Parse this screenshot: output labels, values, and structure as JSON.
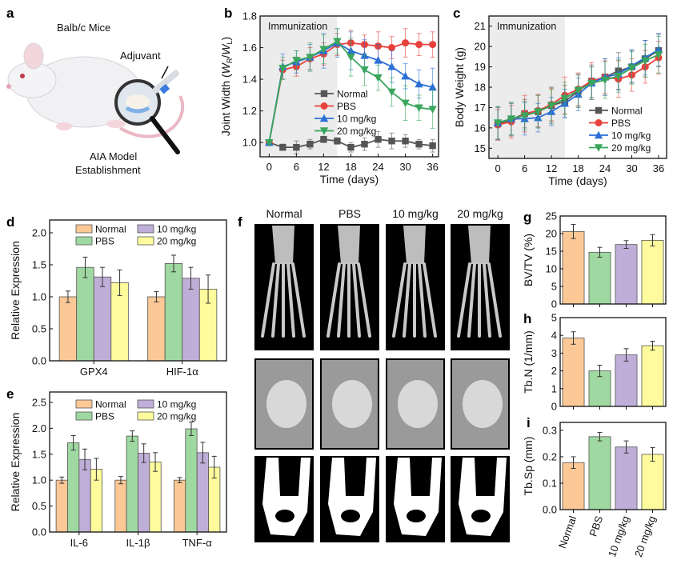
{
  "panel_labels": [
    "a",
    "b",
    "c",
    "d",
    "e",
    "f",
    "g",
    "h",
    "i"
  ],
  "panel_a": {
    "mouse_label": "Balb/c Mice",
    "adjuvant_label": "Adjuvant",
    "model_label_line1": "AIA Model",
    "model_label_line2": "Establishment"
  },
  "panel_f": {
    "column_headers": [
      "Normal",
      "PBS",
      "10 mg/kg",
      "20 mg/kg"
    ]
  },
  "colors": {
    "Normal_line": "#555555",
    "PBS_line": "#e8413c",
    "10mg_line": "#2b6fd6",
    "20mg_line": "#3aa65c",
    "Normal_bar": "#fbc896",
    "PBS_bar": "#9fd8a0",
    "10mg_bar": "#bfaed8",
    "20mg_bar": "#fdfb9c",
    "shade": "#ececec"
  },
  "chart_data": [
    {
      "id": "b",
      "type": "line",
      "xlabel": "Time (days)",
      "ylabel": "Joint Width (W_R/W_L)",
      "annotation": "Immunization",
      "shaded_x_range": [
        0,
        15
      ],
      "xlim": [
        -2,
        37.3
      ],
      "ylim": [
        0.91,
        1.8
      ],
      "xticks": [
        0,
        6,
        12,
        18,
        24,
        30,
        36
      ],
      "yticks": [
        1.0,
        1.2,
        1.4,
        1.6,
        1.8
      ],
      "ytick_decimals": 1,
      "legend": "center-right",
      "x": [
        0,
        3,
        6,
        9,
        12,
        15,
        18,
        21,
        24,
        27,
        30,
        33,
        36
      ],
      "series": [
        {
          "name": "Normal",
          "marker": "square",
          "color": "#555555",
          "values": [
            1.0,
            0.97,
            0.97,
            0.99,
            1.02,
            1.01,
            0.97,
            0.99,
            1.02,
            1.01,
            1.01,
            0.99,
            0.98
          ],
          "errors": [
            0.01,
            0.02,
            0.04,
            0.03,
            0.02,
            0.02,
            0.03,
            0.04,
            0.05,
            0.05,
            0.04,
            0.03,
            0.04
          ]
        },
        {
          "name": "PBS",
          "marker": "circle",
          "color": "#e8413c",
          "values": [
            1.0,
            1.46,
            1.48,
            1.53,
            1.56,
            1.62,
            1.63,
            1.62,
            1.61,
            1.6,
            1.63,
            1.62,
            1.62
          ],
          "errors": [
            0.01,
            0.06,
            0.06,
            0.07,
            0.07,
            0.07,
            0.08,
            0.06,
            0.09,
            0.07,
            0.09,
            0.07,
            0.08
          ]
        },
        {
          "name": "10 mg/kg",
          "marker": "triangle-up",
          "color": "#2b6fd6",
          "values": [
            1.0,
            1.48,
            1.51,
            1.54,
            1.58,
            1.63,
            1.58,
            1.55,
            1.52,
            1.48,
            1.42,
            1.37,
            1.35
          ],
          "errors": [
            0.01,
            0.08,
            0.07,
            0.08,
            0.11,
            0.09,
            0.12,
            0.1,
            0.1,
            0.1,
            0.08,
            0.09,
            0.12
          ]
        },
        {
          "name": "20 mg/kg",
          "marker": "triangle-down",
          "color": "#3aa65c",
          "values": [
            1.0,
            1.47,
            1.52,
            1.54,
            1.59,
            1.64,
            1.54,
            1.46,
            1.41,
            1.32,
            1.25,
            1.22,
            1.21
          ],
          "errors": [
            0.01,
            0.07,
            0.06,
            0.09,
            0.09,
            0.08,
            0.12,
            0.1,
            0.08,
            0.09,
            0.11,
            0.08,
            0.12
          ]
        }
      ]
    },
    {
      "id": "c",
      "type": "line",
      "xlabel": "Time (days)",
      "ylabel": "Body Weight (g)",
      "annotation": "Immunization",
      "shaded_x_range": [
        0,
        15
      ],
      "xlim": [
        -2,
        37.8
      ],
      "ylim": [
        14.5,
        21.5
      ],
      "xticks": [
        0,
        6,
        12,
        18,
        24,
        30,
        36
      ],
      "yticks": [
        15,
        16,
        17,
        18,
        19,
        20,
        21
      ],
      "ytick_decimals": 0,
      "legend": "bottom-right",
      "x": [
        0,
        3,
        6,
        9,
        12,
        15,
        18,
        21,
        24,
        27,
        30,
        33,
        36
      ],
      "series": [
        {
          "name": "Normal",
          "marker": "square",
          "color": "#555555",
          "values": [
            16.2,
            16.4,
            16.7,
            16.8,
            17.1,
            17.3,
            17.8,
            18.3,
            18.5,
            18.8,
            19.0,
            19.4,
            19.8
          ],
          "errors": [
            0.8,
            0.8,
            0.7,
            0.8,
            0.9,
            0.8,
            0.8,
            0.8,
            0.9,
            0.9,
            0.8,
            0.9,
            0.8
          ]
        },
        {
          "name": "PBS",
          "marker": "circle",
          "color": "#e8413c",
          "values": [
            16.15,
            16.3,
            16.7,
            16.85,
            17.15,
            17.6,
            17.9,
            18.3,
            18.5,
            18.4,
            18.6,
            19.0,
            19.45
          ],
          "errors": [
            0.75,
            0.8,
            0.9,
            0.8,
            0.8,
            0.9,
            0.8,
            0.9,
            0.8,
            0.9,
            0.8,
            0.8,
            0.8
          ]
        },
        {
          "name": "10 mg/kg",
          "marker": "triangle-up",
          "color": "#2b6fd6",
          "values": [
            16.25,
            16.45,
            16.45,
            16.5,
            16.8,
            17.2,
            17.65,
            18.2,
            18.5,
            18.65,
            19.05,
            19.45,
            19.85
          ],
          "errors": [
            0.8,
            0.8,
            0.8,
            0.7,
            0.7,
            0.7,
            0.8,
            0.8,
            0.9,
            0.8,
            0.8,
            0.85,
            0.8
          ]
        },
        {
          "name": "20 mg/kg",
          "marker": "triangle-down",
          "color": "#3aa65c",
          "values": [
            16.25,
            16.45,
            16.6,
            16.8,
            17.1,
            17.45,
            17.85,
            18.2,
            18.35,
            18.55,
            18.95,
            19.3,
            19.6
          ],
          "errors": [
            0.8,
            0.8,
            0.7,
            0.8,
            0.8,
            0.8,
            0.8,
            0.8,
            0.9,
            0.8,
            0.8,
            0.8,
            0.9
          ]
        }
      ]
    },
    {
      "id": "d",
      "type": "bar",
      "ylabel": "Relative Expression",
      "ylim": [
        0,
        2.2
      ],
      "yticks": [
        0.0,
        0.5,
        1.0,
        1.5,
        2.0
      ],
      "ytick_decimals": 1,
      "legend": "top",
      "categories": [
        "GPX4",
        "HIF-1α"
      ],
      "series": [
        {
          "name": "Normal",
          "color": "#fbc896",
          "values": [
            1.0,
            1.0
          ],
          "errors": [
            0.09,
            0.08
          ]
        },
        {
          "name": "PBS",
          "color": "#9fd8a0",
          "values": [
            1.46,
            1.52
          ],
          "errors": [
            0.16,
            0.13
          ]
        },
        {
          "name": "10 mg/kg",
          "color": "#bfaed8",
          "values": [
            1.31,
            1.29
          ],
          "errors": [
            0.15,
            0.17
          ]
        },
        {
          "name": "20 mg/kg",
          "color": "#fdfb9c",
          "values": [
            1.22,
            1.12
          ],
          "errors": [
            0.2,
            0.22
          ]
        }
      ]
    },
    {
      "id": "e",
      "type": "bar",
      "ylabel": "Relative Expression",
      "ylim": [
        0,
        2.7
      ],
      "yticks": [
        0.0,
        0.5,
        1.0,
        1.5,
        2.0,
        2.5
      ],
      "ytick_decimals": 1,
      "legend": "top",
      "categories": [
        "IL-6",
        "IL-1β",
        "TNF-α"
      ],
      "series": [
        {
          "name": "Normal",
          "color": "#fbc896",
          "values": [
            1.0,
            1.0,
            1.0
          ],
          "errors": [
            0.06,
            0.07,
            0.05
          ]
        },
        {
          "name": "PBS",
          "color": "#9fd8a0",
          "values": [
            1.72,
            1.85,
            1.99
          ],
          "errors": [
            0.14,
            0.1,
            0.13
          ]
        },
        {
          "name": "10 mg/kg",
          "color": "#bfaed8",
          "values": [
            1.4,
            1.52,
            1.53
          ],
          "errors": [
            0.2,
            0.18,
            0.2
          ]
        },
        {
          "name": "20 mg/kg",
          "color": "#fdfb9c",
          "values": [
            1.21,
            1.35,
            1.25
          ],
          "errors": [
            0.21,
            0.18,
            0.21
          ]
        }
      ]
    },
    {
      "id": "g",
      "type": "bar",
      "ylabel": "BV/TV (%)",
      "ylim": [
        0,
        25
      ],
      "yticks": [
        0,
        5,
        10,
        15,
        20,
        25
      ],
      "ytick_decimals": 0,
      "show_xticklabels": false,
      "categories": [
        "Normal",
        "PBS",
        "10 mg/kg",
        "20 mg/kg"
      ],
      "values": [
        20.6,
        14.7,
        16.9,
        18.1
      ],
      "errors": [
        2.0,
        1.4,
        1.1,
        1.6
      ],
      "colors": [
        "#fbc896",
        "#9fd8a0",
        "#bfaed8",
        "#fdfb9c"
      ]
    },
    {
      "id": "h",
      "type": "bar",
      "ylabel": "Tb.N (1/mm)",
      "ylim": [
        0,
        5
      ],
      "yticks": [
        0,
        1,
        2,
        3,
        4,
        5
      ],
      "ytick_decimals": 0,
      "show_xticklabels": false,
      "categories": [
        "Normal",
        "PBS",
        "10 mg/kg",
        "20 mg/kg"
      ],
      "values": [
        3.85,
        2.0,
        2.9,
        3.42
      ],
      "errors": [
        0.35,
        0.32,
        0.35,
        0.25
      ],
      "colors": [
        "#fbc896",
        "#9fd8a0",
        "#bfaed8",
        "#fdfb9c"
      ]
    },
    {
      "id": "i",
      "type": "bar",
      "ylabel": "Tb.Sp (mm)",
      "ylim": [
        0,
        0.33
      ],
      "yticks": [
        0.0,
        0.1,
        0.2,
        0.3
      ],
      "ytick_decimals": 1,
      "show_xticklabels": true,
      "categories": [
        "Normal",
        "PBS",
        "10 mg/kg",
        "20 mg/kg"
      ],
      "values": [
        0.178,
        0.276,
        0.237,
        0.209
      ],
      "errors": [
        0.022,
        0.016,
        0.023,
        0.026
      ],
      "colors": [
        "#fbc896",
        "#9fd8a0",
        "#bfaed8",
        "#fdfb9c"
      ]
    }
  ]
}
